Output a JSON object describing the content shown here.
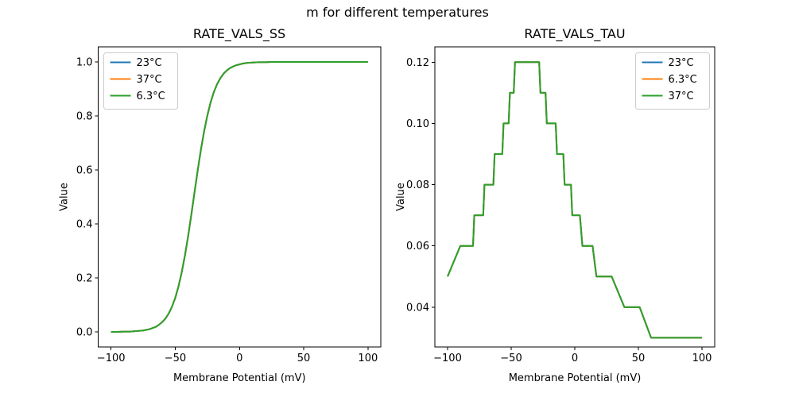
{
  "figure": {
    "suptitle": "m for different temperatures",
    "background": "#ffffff",
    "text_color": "#000000"
  },
  "chart_data": [
    {
      "type": "line",
      "title": "RATE_VALS_SS",
      "xlabel": "Membrane Potential (mV)",
      "ylabel": "Value",
      "xlim": [
        -110,
        110
      ],
      "ylim": [
        -0.056,
        1.056
      ],
      "grid": false,
      "xticks": {
        "values": [
          -100,
          -50,
          0,
          50,
          100
        ],
        "labels": [
          "−100",
          "−50",
          "0",
          "50",
          "100"
        ]
      },
      "yticks": {
        "values": [
          0.0,
          0.2,
          0.4,
          0.6,
          0.8,
          1.0
        ],
        "labels": [
          "0.0",
          "0.2",
          "0.4",
          "0.6",
          "0.8",
          "1.0"
        ]
      },
      "legend": {
        "position": "upper-left",
        "entries": [
          {
            "label": "23°C",
            "color": "#1f77b4"
          },
          {
            "label": "37°C",
            "color": "#ff7f0e"
          },
          {
            "label": "6.3°C",
            "color": "#2ca02c"
          }
        ]
      },
      "series": [
        {
          "name": "23°C",
          "color": "#1f77b4"
        },
        {
          "name": "37°C",
          "color": "#ff7f0e"
        },
        {
          "name": "6.3°C",
          "color": "#2ca02c"
        }
      ],
      "series_overlap": true,
      "points": [
        [
          -100,
          0.0
        ],
        [
          -95,
          0.0
        ],
        [
          -90,
          0.001
        ],
        [
          -85,
          0.001
        ],
        [
          -80,
          0.003
        ],
        [
          -75,
          0.005
        ],
        [
          -70,
          0.01
        ],
        [
          -65,
          0.019
        ],
        [
          -62.5,
          0.027
        ],
        [
          -60,
          0.037
        ],
        [
          -57.5,
          0.05
        ],
        [
          -55,
          0.069
        ],
        [
          -52.5,
          0.094
        ],
        [
          -50,
          0.126
        ],
        [
          -47.5,
          0.168
        ],
        [
          -45,
          0.22
        ],
        [
          -42.5,
          0.282
        ],
        [
          -40,
          0.354
        ],
        [
          -37.5,
          0.434
        ],
        [
          -35,
          0.517
        ],
        [
          -32.5,
          0.599
        ],
        [
          -30,
          0.676
        ],
        [
          -27.5,
          0.744
        ],
        [
          -25,
          0.802
        ],
        [
          -22.5,
          0.85
        ],
        [
          -20,
          0.888
        ],
        [
          -17.5,
          0.917
        ],
        [
          -15,
          0.939
        ],
        [
          -12.5,
          0.956
        ],
        [
          -10,
          0.968
        ],
        [
          -7.5,
          0.977
        ],
        [
          -5,
          0.983
        ],
        [
          -2.5,
          0.988
        ],
        [
          0,
          0.991
        ],
        [
          2.5,
          0.994
        ],
        [
          5,
          0.996
        ],
        [
          7.5,
          0.997
        ],
        [
          10,
          0.998
        ],
        [
          15,
          0.999
        ],
        [
          20,
          0.999
        ],
        [
          25,
          1.0
        ],
        [
          30,
          1.0
        ],
        [
          40,
          1.0
        ],
        [
          50,
          1.0
        ],
        [
          60,
          1.0
        ],
        [
          70,
          1.0
        ],
        [
          80,
          1.0
        ],
        [
          90,
          1.0
        ],
        [
          100,
          1.0
        ]
      ]
    },
    {
      "type": "line",
      "title": "RATE_VALS_TAU",
      "xlabel": "Membrane Potential (mV)",
      "ylabel": "Value",
      "xlim": [
        -110,
        110
      ],
      "ylim": [
        0.027,
        0.125
      ],
      "grid": false,
      "xticks": {
        "values": [
          -100,
          -50,
          0,
          50,
          100
        ],
        "labels": [
          "−100",
          "−50",
          "0",
          "50",
          "100"
        ]
      },
      "yticks": {
        "values": [
          0.04,
          0.06,
          0.08,
          0.1,
          0.12
        ],
        "labels": [
          "0.04",
          "0.06",
          "0.08",
          "0.10",
          "0.12"
        ]
      },
      "legend": {
        "position": "upper-right",
        "entries": [
          {
            "label": "23°C",
            "color": "#1f77b4"
          },
          {
            "label": "6.3°C",
            "color": "#ff7f0e"
          },
          {
            "label": "37°C",
            "color": "#2ca02c"
          }
        ]
      },
      "series": [
        {
          "name": "23°C",
          "color": "#1f77b4"
        },
        {
          "name": "6.3°C",
          "color": "#ff7f0e"
        },
        {
          "name": "37°C",
          "color": "#2ca02c"
        }
      ],
      "series_overlap": true,
      "points": [
        [
          -100,
          0.05
        ],
        [
          -90,
          0.06
        ],
        [
          -80,
          0.06
        ],
        [
          -79,
          0.07
        ],
        [
          -72,
          0.07
        ],
        [
          -71,
          0.08
        ],
        [
          -64,
          0.08
        ],
        [
          -63,
          0.09
        ],
        [
          -57,
          0.09
        ],
        [
          -56,
          0.1
        ],
        [
          -52,
          0.1
        ],
        [
          -51,
          0.11
        ],
        [
          -48,
          0.11
        ],
        [
          -47,
          0.12
        ],
        [
          -28,
          0.12
        ],
        [
          -27,
          0.11
        ],
        [
          -23,
          0.11
        ],
        [
          -22,
          0.1
        ],
        [
          -15,
          0.1
        ],
        [
          -14,
          0.09
        ],
        [
          -9,
          0.09
        ],
        [
          -8,
          0.08
        ],
        [
          -3,
          0.08
        ],
        [
          -2,
          0.07
        ],
        [
          4,
          0.07
        ],
        [
          6,
          0.06
        ],
        [
          14,
          0.06
        ],
        [
          17,
          0.05
        ],
        [
          29,
          0.05
        ],
        [
          39,
          0.04
        ],
        [
          51,
          0.04
        ],
        [
          60,
          0.03
        ],
        [
          100,
          0.03
        ]
      ]
    }
  ]
}
